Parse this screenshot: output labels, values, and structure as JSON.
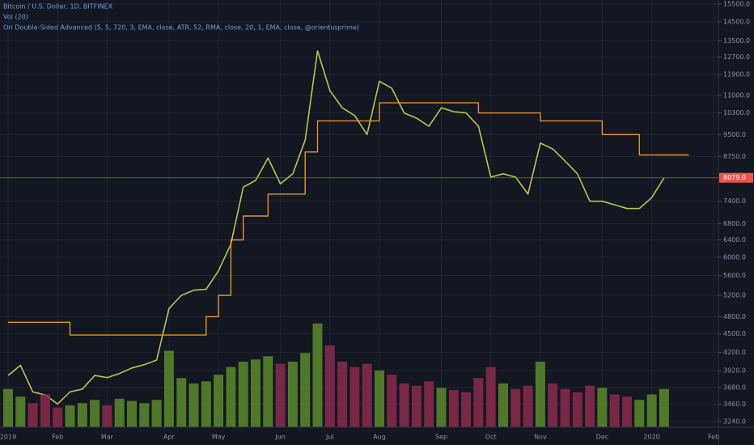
{
  "chart_data": {
    "type": "line",
    "legend": [
      "Bitcoin / U.S. Dollar, 1D, BITFINEX",
      "Vol (20)",
      "Ori Double-Sided Advanced (5, 5, 720, 3, EMA, close, ATR, 52, RMA, close, 20, 1, EMA, close, @orientusprime)"
    ],
    "log_scale": true,
    "grid": true,
    "categories": [
      "2019",
      null,
      null,
      null,
      "Feb",
      null,
      null,
      null,
      "Mar",
      null,
      null,
      null,
      null,
      "Apr",
      null,
      null,
      null,
      "May",
      null,
      null,
      null,
      null,
      "Jun",
      null,
      null,
      null,
      "Jul",
      null,
      null,
      null,
      "Aug",
      null,
      null,
      null,
      null,
      "Sep",
      null,
      null,
      null,
      "Oct",
      null,
      null,
      null,
      "Nov",
      null,
      null,
      null,
      null,
      "Dec",
      null,
      null,
      null,
      "2020",
      null,
      null,
      null,
      null,
      "Feb"
    ],
    "series": [
      {
        "name": "Bitcoin / U.S. Dollar, 1D, BITFINEX",
        "color": "#b8c74c",
        "values": [
          3850,
          4000,
          3620,
          3580,
          3460,
          3620,
          3660,
          3850,
          3820,
          3880,
          3960,
          4010,
          4080,
          4950,
          5200,
          5300,
          5320,
          5700,
          6300,
          7800,
          8000,
          8700,
          7900,
          8200,
          9300,
          13000,
          11200,
          10500,
          10200,
          9500,
          11600,
          11300,
          10300,
          10100,
          9800,
          10500,
          10350,
          10300,
          9800,
          8100,
          8200,
          8100,
          7600,
          9200,
          9000,
          8600,
          8200,
          7400,
          7400,
          7300,
          7200,
          7200,
          7500,
          8079,
          null,
          null,
          null,
          null
        ]
      },
      {
        "name": "Ori Double-Sided Advanced (5, 5, 720, 3, EMA, close, ATR, 52, RMA, close, 20, 1, EMA, close, @orientusprime)",
        "color": "#e8912c",
        "values": [
          4700,
          4700,
          4700,
          4700,
          4700,
          4480,
          4480,
          4480,
          4480,
          4480,
          4480,
          4480,
          4480,
          4480,
          4480,
          4480,
          4800,
          5200,
          6400,
          7000,
          7000,
          7600,
          7600,
          7600,
          8900,
          10000,
          10000,
          10000,
          10000,
          10000,
          10700,
          10700,
          10700,
          10700,
          10700,
          10700,
          10700,
          10700,
          10300,
          10300,
          10300,
          10300,
          10300,
          10000,
          10000,
          10000,
          10000,
          10000,
          9500,
          9500,
          9500,
          8800,
          8800,
          8800,
          8800,
          8800,
          null,
          null
        ]
      },
      {
        "name": "Vol (20)",
        "axis": "y2",
        "up_color": "#5b8a2a",
        "down_color": "#8c2a4e",
        "values": [
          35,
          28,
          22,
          30,
          18,
          20,
          22,
          25,
          20,
          26,
          24,
          22,
          25,
          70,
          45,
          40,
          42,
          48,
          55,
          60,
          62,
          65,
          58,
          60,
          68,
          95,
          75,
          60,
          55,
          58,
          52,
          48,
          40,
          38,
          42,
          36,
          34,
          32,
          45,
          55,
          40,
          35,
          38,
          60,
          40,
          35,
          32,
          38,
          36,
          30,
          28,
          25,
          30,
          35,
          null,
          null,
          null,
          null
        ]
      }
    ],
    "ylim": [
      3172,
      15730
    ],
    "yticks": [
      {
        "value": 3240,
        "label": "3240.0"
      },
      {
        "value": 3460,
        "label": "3460.0"
      },
      {
        "value": 3680,
        "label": "3680.0"
      },
      {
        "value": 3920,
        "label": "3920.0"
      },
      {
        "value": 4200,
        "label": "4200.0"
      },
      {
        "value": 4500,
        "label": "4500.0"
      },
      {
        "value": 4800,
        "label": "4800.0"
      },
      {
        "value": 5200,
        "label": "5200.0"
      },
      {
        "value": 5600,
        "label": "5600.0"
      },
      {
        "value": 6000,
        "label": "6000.0"
      },
      {
        "value": 6400,
        "label": "6400.0"
      },
      {
        "value": 6800,
        "label": "6800.0"
      },
      {
        "value": 7400,
        "label": "7400.0"
      },
      {
        "value": 8750,
        "label": "8750.0"
      },
      {
        "value": 9500,
        "label": "9500.0"
      },
      {
        "value": 10300,
        "label": "10300.0"
      },
      {
        "value": 11000,
        "label": "11000.0"
      },
      {
        "value": 11900,
        "label": "11900.0"
      },
      {
        "value": 12700,
        "label": "12700.0"
      },
      {
        "value": 13500,
        "label": "13500.0"
      },
      {
        "value": 14500,
        "label": "14500.0"
      },
      {
        "value": 15500,
        "label": "15500.0"
      }
    ],
    "y2lim": [
      0,
      100
    ],
    "last_price": {
      "value": 8079,
      "label": "8079.0",
      "color": "#ef5350"
    }
  }
}
